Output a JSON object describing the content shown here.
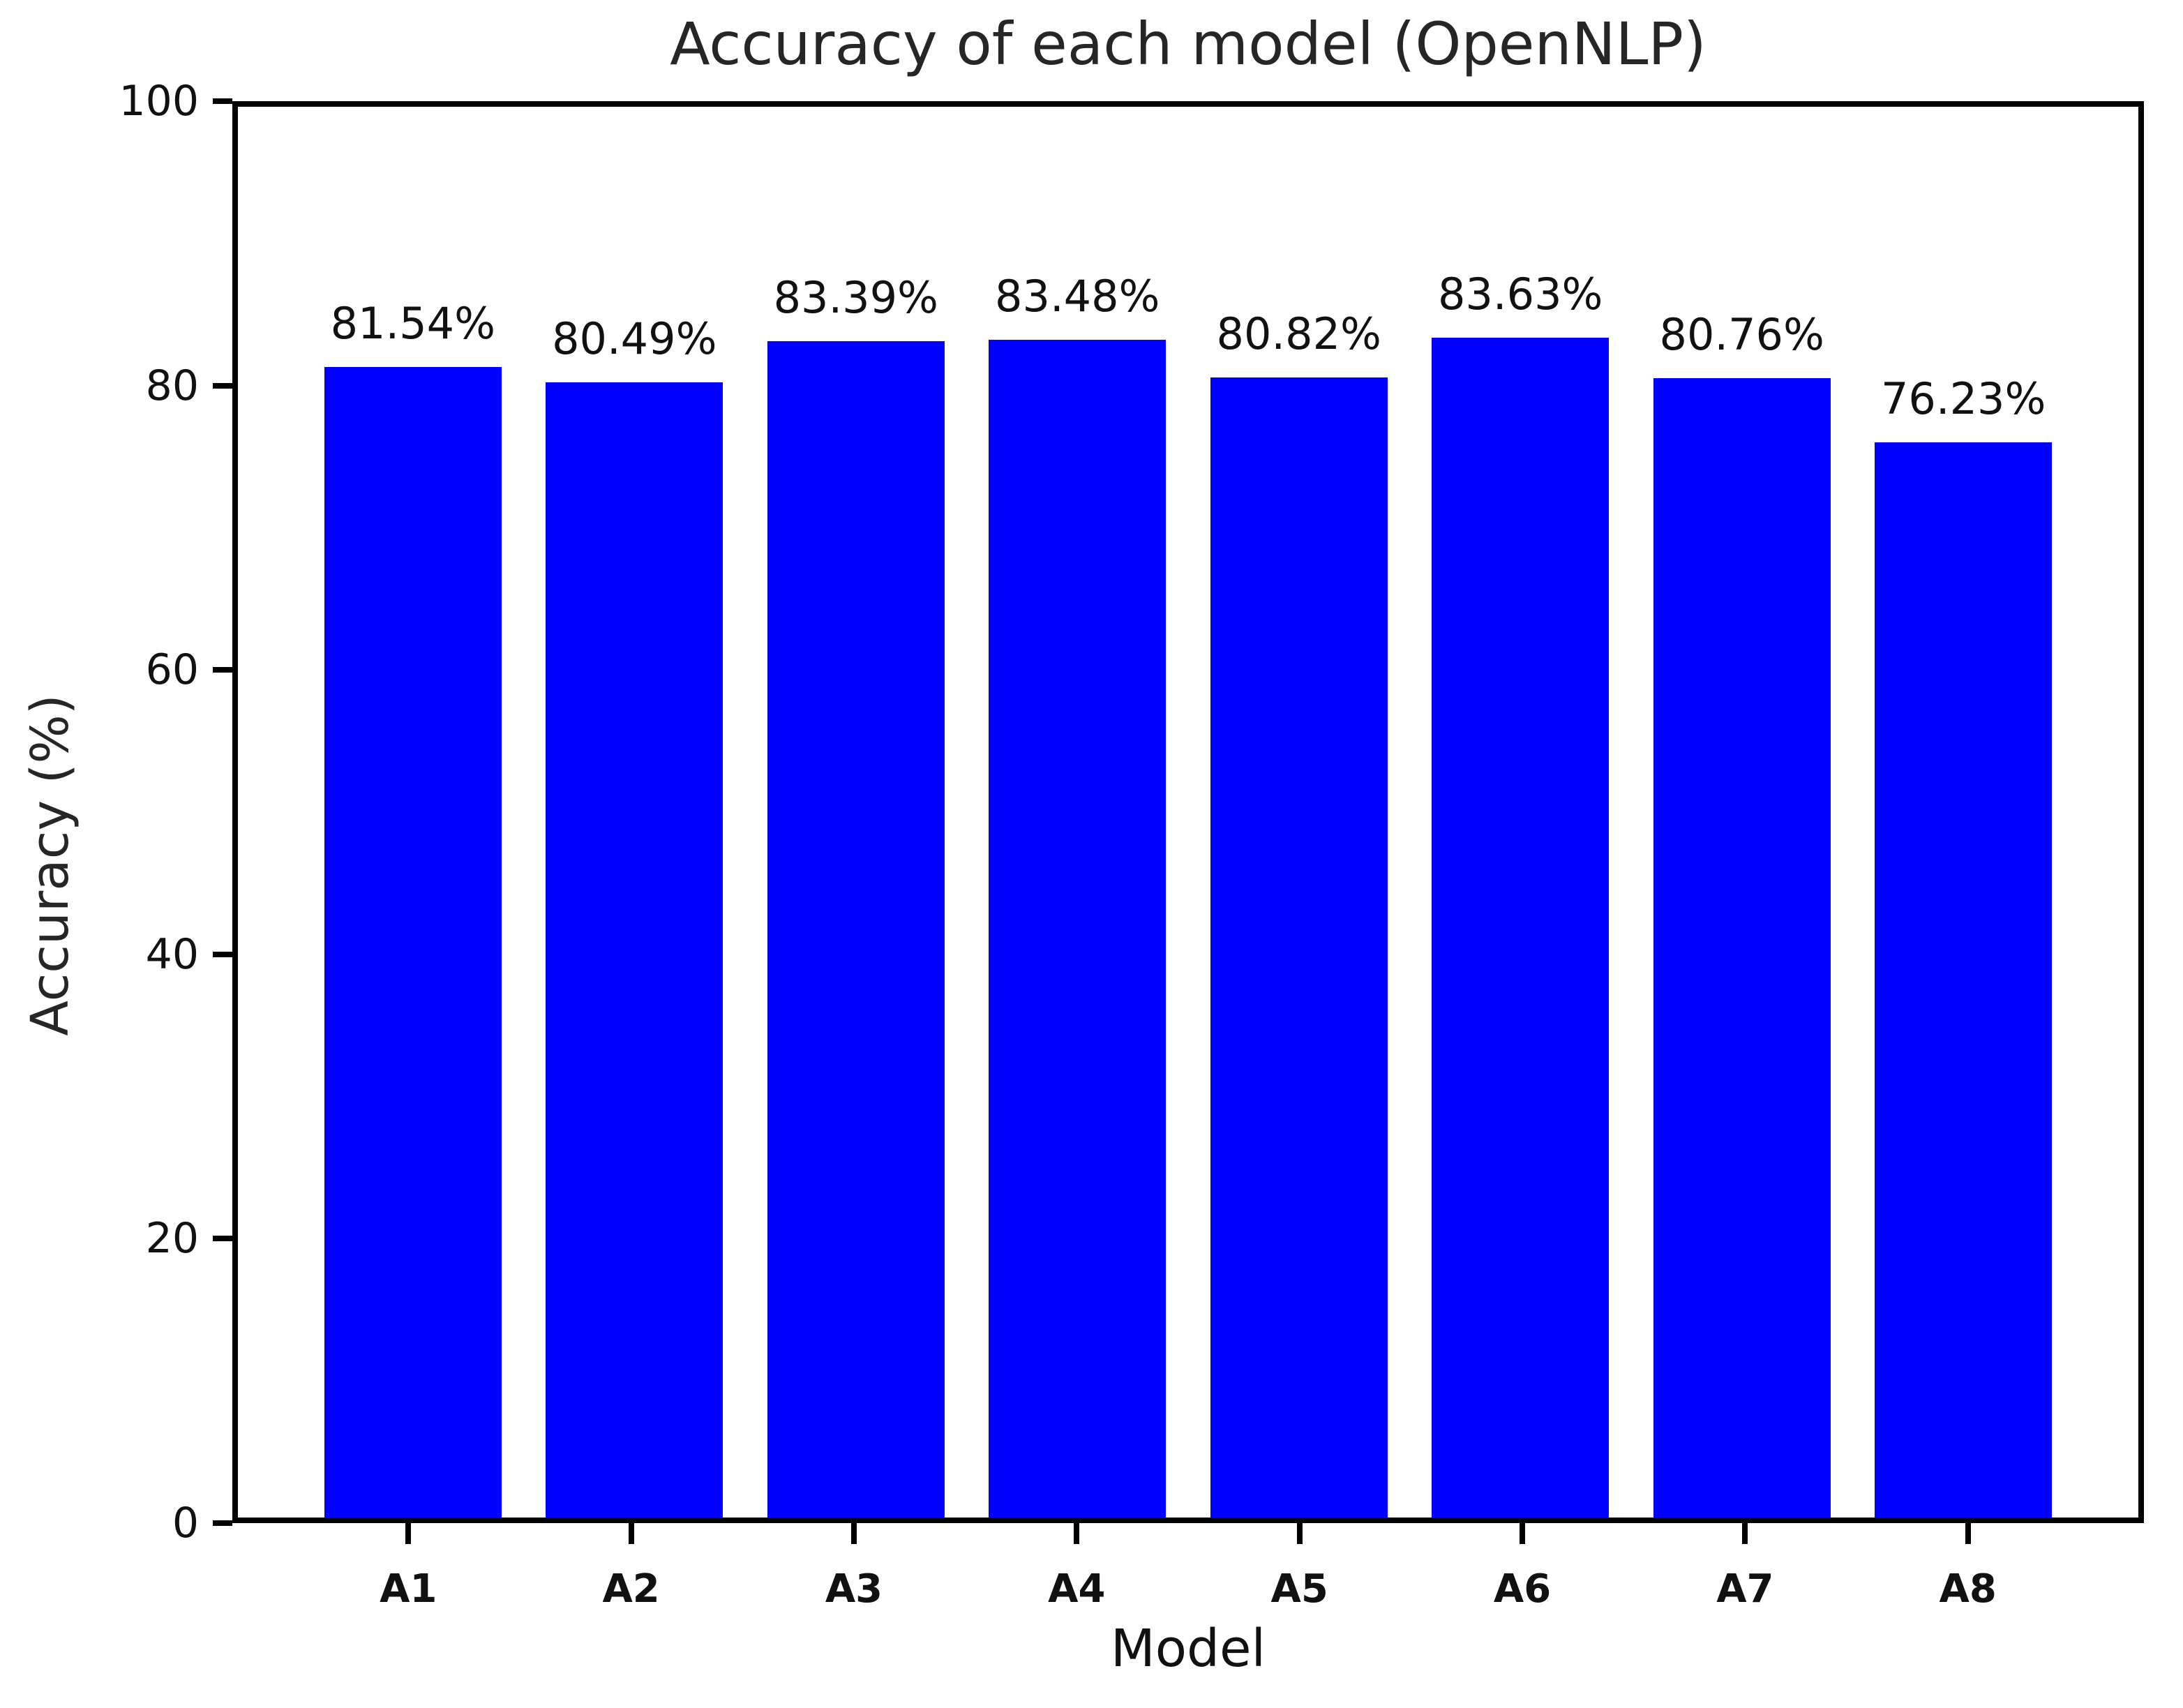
{
  "figure": {
    "title": "Accuracy of each model (OpenNLP)",
    "xlabel": "Model",
    "ylabel": "Accuracy (%)"
  },
  "chart_data": {
    "type": "bar",
    "title": "Accuracy of each model (OpenNLP)",
    "xlabel": "Model",
    "ylabel": "Accuracy (%)",
    "categories": [
      "A1",
      "A2",
      "A3",
      "A4",
      "A5",
      "A6",
      "A7",
      "A8"
    ],
    "values": [
      81.54,
      80.49,
      83.39,
      83.48,
      80.82,
      83.63,
      80.76,
      76.23
    ],
    "bar_labels": [
      "81.54%",
      "80.49%",
      "83.39%",
      "83.48%",
      "80.82%",
      "83.63%",
      "80.76%",
      "76.23%"
    ],
    "yticks": [
      0,
      20,
      40,
      60,
      80,
      100
    ],
    "ylim": [
      0,
      100
    ],
    "xlim": [
      -0.79,
      7.79
    ],
    "bar_width": 0.8,
    "grid": false,
    "legend": null,
    "colors": {
      "bar": "#0000ff",
      "spine": "#000000",
      "text": "#111111",
      "background": "#ffffff"
    }
  }
}
